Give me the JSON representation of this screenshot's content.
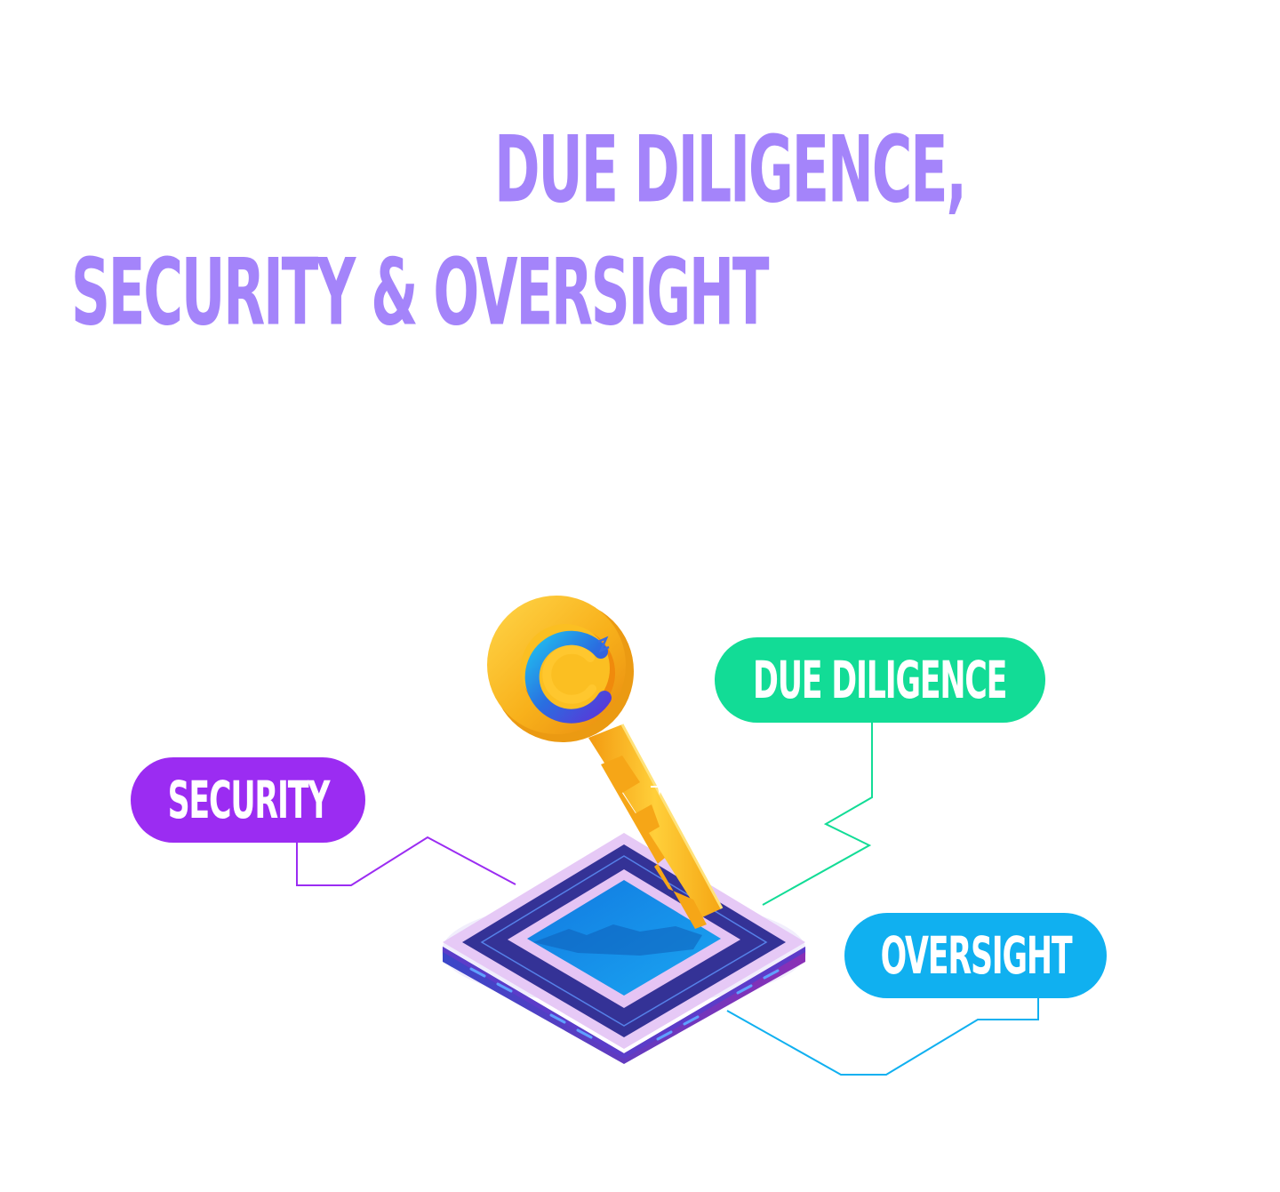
{
  "heading": {
    "line1": "DUE DILIGENCE,",
    "line2": "SECURITY & OVERSIGHT"
  },
  "labels": {
    "security": "SECURITY",
    "due_diligence": "DUE DILIGENCE",
    "oversight": "OVERSIGHT"
  },
  "colors": {
    "heading": "#a484fa",
    "security": "#9b2cf2",
    "due_diligence": "#12dc96",
    "oversight": "#10b0f0",
    "key_gold": "#f7b21c",
    "platform_dark": "#343296",
    "platform_light": "#e7c8f6",
    "platform_screen": "#1590ec"
  },
  "icons": {
    "key": "key-icon",
    "logo": "c-logo-icon",
    "platform": "platform-icon"
  }
}
